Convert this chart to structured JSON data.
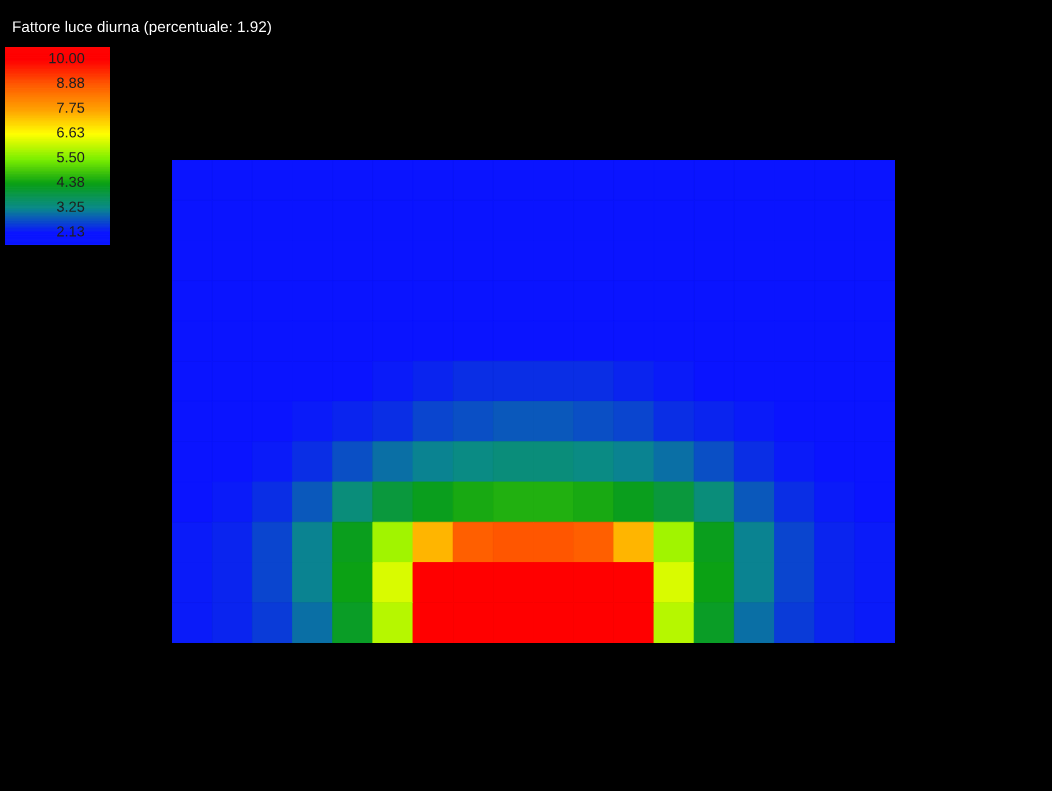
{
  "chart_data": {
    "type": "heatmap",
    "title": "Fattore luce diurna (percentuale: 1.92)",
    "categories": [
      null,
      null,
      null,
      null,
      null,
      null,
      null,
      null,
      null,
      null,
      null,
      null,
      null,
      null,
      null,
      null,
      null,
      null
    ],
    "y_categories": [
      null,
      null,
      null,
      null,
      null,
      null,
      null,
      null,
      null,
      null,
      null,
      null
    ],
    "cells": [
      [
        2.13,
        2.13,
        2.13,
        2.13,
        2.13,
        2.13,
        2.13,
        2.13,
        2.13,
        2.13,
        2.13,
        2.13,
        2.13,
        2.13,
        2.13,
        2.13,
        2.13,
        2.13
      ],
      [
        2.13,
        2.13,
        2.13,
        2.13,
        2.13,
        2.13,
        2.13,
        2.13,
        2.13,
        2.13,
        2.13,
        2.13,
        2.13,
        2.13,
        2.13,
        2.13,
        2.13,
        2.13
      ],
      [
        2.13,
        2.13,
        2.13,
        2.13,
        2.13,
        2.13,
        2.13,
        2.13,
        2.13,
        2.13,
        2.13,
        2.13,
        2.13,
        2.13,
        2.13,
        2.13,
        2.13,
        2.13
      ],
      [
        2.13,
        2.13,
        2.13,
        2.13,
        2.13,
        2.13,
        2.13,
        2.13,
        2.13,
        2.13,
        2.13,
        2.13,
        2.13,
        2.13,
        2.13,
        2.13,
        2.13,
        2.13
      ],
      [
        2.13,
        2.13,
        2.13,
        2.13,
        2.13,
        2.13,
        2.13,
        2.13,
        2.13,
        2.13,
        2.13,
        2.13,
        2.13,
        2.13,
        2.13,
        2.13,
        2.13,
        2.13
      ],
      [
        2.13,
        2.13,
        2.13,
        2.13,
        2.13,
        2.2,
        2.3,
        2.4,
        2.4,
        2.4,
        2.4,
        2.3,
        2.2,
        2.13,
        2.13,
        2.13,
        2.13,
        2.13
      ],
      [
        2.13,
        2.13,
        2.13,
        2.2,
        2.3,
        2.4,
        2.6,
        2.7,
        2.8,
        2.8,
        2.7,
        2.6,
        2.4,
        2.3,
        2.2,
        2.13,
        2.13,
        2.13
      ],
      [
        2.13,
        2.13,
        2.2,
        2.4,
        2.7,
        3.0,
        3.2,
        3.3,
        3.4,
        3.4,
        3.3,
        3.2,
        3.0,
        2.7,
        2.4,
        2.2,
        2.13,
        2.13
      ],
      [
        2.13,
        2.2,
        2.4,
        2.8,
        3.4,
        4.0,
        4.3,
        4.5,
        4.6,
        4.6,
        4.5,
        4.3,
        4.0,
        3.4,
        2.8,
        2.4,
        2.2,
        2.13
      ],
      [
        2.2,
        2.3,
        2.6,
        3.2,
        4.3,
        5.8,
        7.5,
        8.8,
        8.9,
        8.9,
        8.8,
        7.5,
        5.8,
        4.3,
        3.2,
        2.6,
        2.3,
        2.2
      ],
      [
        2.2,
        2.3,
        2.6,
        3.2,
        4.4,
        6.3,
        10.0,
        10.0,
        10.0,
        10.0,
        10.0,
        10.0,
        6.3,
        4.4,
        3.2,
        2.6,
        2.3,
        2.2
      ],
      [
        2.2,
        2.3,
        2.5,
        3.0,
        4.2,
        6.0,
        10.0,
        10.0,
        10.0,
        10.0,
        10.0,
        10.0,
        6.0,
        4.2,
        3.0,
        2.5,
        2.3,
        2.2
      ]
    ],
    "clim": [
      2.13,
      10.0
    ],
    "cticks": [
      {
        "value": 10.0,
        "label": "10.00"
      },
      8.88,
      7.75,
      6.63,
      {
        "value": 5.5,
        "label": "5.50"
      },
      4.38,
      3.25,
      2.13
    ]
  }
}
